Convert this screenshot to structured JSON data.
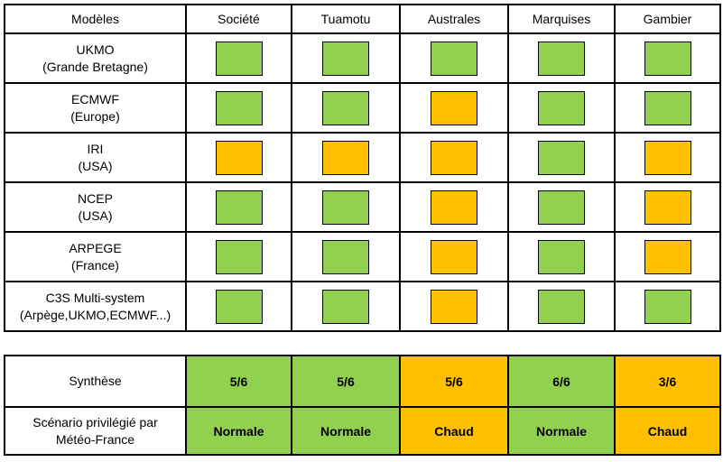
{
  "colors": {
    "green": "#92d050",
    "orange": "#ffc000"
  },
  "models_table": {
    "columns": [
      "Modèles",
      "Société",
      "Tuamotu",
      "Australes",
      "Marquises",
      "Gambier"
    ],
    "rows": [
      {
        "model": "UKMO",
        "origin": "(Grande Bretagne)",
        "cells": [
          "green",
          "green",
          "green",
          "green",
          "green"
        ]
      },
      {
        "model": "ECMWF",
        "origin": "(Europe)",
        "cells": [
          "green",
          "green",
          "orange",
          "green",
          "green"
        ]
      },
      {
        "model": "IRI",
        "origin": "(USA)",
        "cells": [
          "orange",
          "orange",
          "orange",
          "green",
          "orange"
        ]
      },
      {
        "model": "NCEP",
        "origin": "(USA)",
        "cells": [
          "green",
          "green",
          "orange",
          "green",
          "orange"
        ]
      },
      {
        "model": "ARPEGE",
        "origin": "(France)",
        "cells": [
          "green",
          "green",
          "orange",
          "green",
          "orange"
        ]
      },
      {
        "model": "C3S Multi-system",
        "origin": "(Arpège,UKMO,ECMWF...)",
        "cells": [
          "green",
          "green",
          "orange",
          "green",
          "green"
        ]
      }
    ]
  },
  "summary_table": {
    "rows": [
      {
        "label_lines": [
          "Synthèse"
        ],
        "cells": [
          {
            "text": "5/6",
            "color": "green"
          },
          {
            "text": "5/6",
            "color": "green"
          },
          {
            "text": "5/6",
            "color": "orange"
          },
          {
            "text": "6/6",
            "color": "green"
          },
          {
            "text": "3/6",
            "color": "orange"
          }
        ]
      },
      {
        "label_lines": [
          "Scénario privilégié par",
          "Météo-France"
        ],
        "cells": [
          {
            "text": "Normale",
            "color": "green"
          },
          {
            "text": "Normale",
            "color": "green"
          },
          {
            "text": "Chaud",
            "color": "orange"
          },
          {
            "text": "Normale",
            "color": "green"
          },
          {
            "text": "Chaud",
            "color": "orange"
          }
        ]
      }
    ]
  },
  "chart_data": {
    "type": "heatmap",
    "title": "",
    "columns": [
      "Société",
      "Tuamotu",
      "Australes",
      "Marquises",
      "Gambier"
    ],
    "rows": [
      "UKMO (Grande Bretagne)",
      "ECMWF (Europe)",
      "IRI (USA)",
      "NCEP (USA)",
      "ARPEGE (France)",
      "C3S Multi-system (Arpège,UKMO,ECMWF...)"
    ],
    "values": [
      [
        "green",
        "green",
        "green",
        "green",
        "green"
      ],
      [
        "green",
        "green",
        "orange",
        "green",
        "green"
      ],
      [
        "orange",
        "orange",
        "orange",
        "green",
        "orange"
      ],
      [
        "green",
        "green",
        "orange",
        "green",
        "orange"
      ],
      [
        "green",
        "green",
        "orange",
        "green",
        "orange"
      ],
      [
        "green",
        "green",
        "orange",
        "green",
        "green"
      ]
    ],
    "color_map": {
      "green": "#92d050",
      "orange": "#ffc000"
    },
    "synthesis": {
      "labels": [
        "5/6",
        "5/6",
        "5/6",
        "6/6",
        "3/6"
      ],
      "colors": [
        "green",
        "green",
        "orange",
        "green",
        "orange"
      ]
    },
    "scenario": {
      "labels": [
        "Normale",
        "Normale",
        "Chaud",
        "Normale",
        "Chaud"
      ],
      "colors": [
        "green",
        "green",
        "orange",
        "green",
        "orange"
      ]
    },
    "legend_position": "none",
    "grid": true
  }
}
